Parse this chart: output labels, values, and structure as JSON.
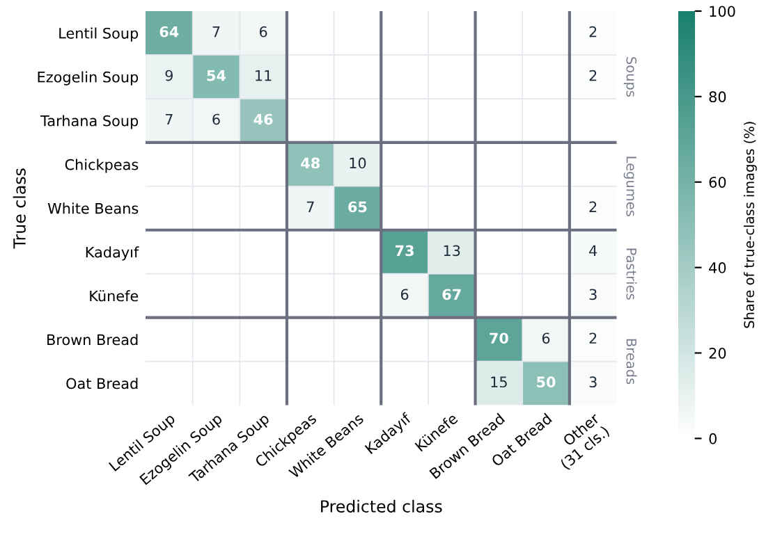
{
  "chart_data": {
    "type": "heatmap",
    "xlabel": "Predicted class",
    "ylabel": "True class",
    "clabel": "Share of true-class images (%)",
    "categories": [
      "Lentil Soup",
      "Ezogelin Soup",
      "Tarhana Soup",
      "Chickpeas",
      "White Beans",
      "Kadayıf",
      "Künefe",
      "Brown Bread",
      "Oat Bread",
      "Other\n(31 cls.)"
    ],
    "y_categories": [
      "Lentil Soup",
      "Ezogelin Soup",
      "Tarhana Soup",
      "Chickpeas",
      "White Beans",
      "Kadayıf",
      "Künefe",
      "Brown Bread",
      "Oat Bread"
    ],
    "cells": [
      [
        64,
        7,
        6,
        null,
        null,
        null,
        null,
        null,
        null,
        2
      ],
      [
        9,
        54,
        11,
        null,
        null,
        null,
        null,
        null,
        null,
        2
      ],
      [
        7,
        6,
        46,
        null,
        null,
        null,
        null,
        null,
        null,
        null
      ],
      [
        null,
        null,
        null,
        48,
        10,
        null,
        null,
        null,
        null,
        null
      ],
      [
        null,
        null,
        null,
        7,
        65,
        null,
        null,
        null,
        null,
        2
      ],
      [
        null,
        null,
        null,
        null,
        null,
        73,
        13,
        null,
        null,
        4
      ],
      [
        null,
        null,
        null,
        null,
        null,
        6,
        67,
        null,
        null,
        3
      ],
      [
        null,
        null,
        null,
        null,
        null,
        null,
        null,
        70,
        6,
        2
      ],
      [
        null,
        null,
        null,
        null,
        null,
        null,
        null,
        15,
        50,
        3
      ]
    ],
    "data_labels": true,
    "clim": [
      0,
      100
    ],
    "cticks": [
      0,
      20,
      40,
      60,
      80,
      100
    ],
    "colors": [
      "#ffffff",
      "#1a7f6e"
    ],
    "grid": true,
    "annotations": [
      "Soups",
      "Legumes",
      "Pastries",
      "Breads"
    ]
  }
}
